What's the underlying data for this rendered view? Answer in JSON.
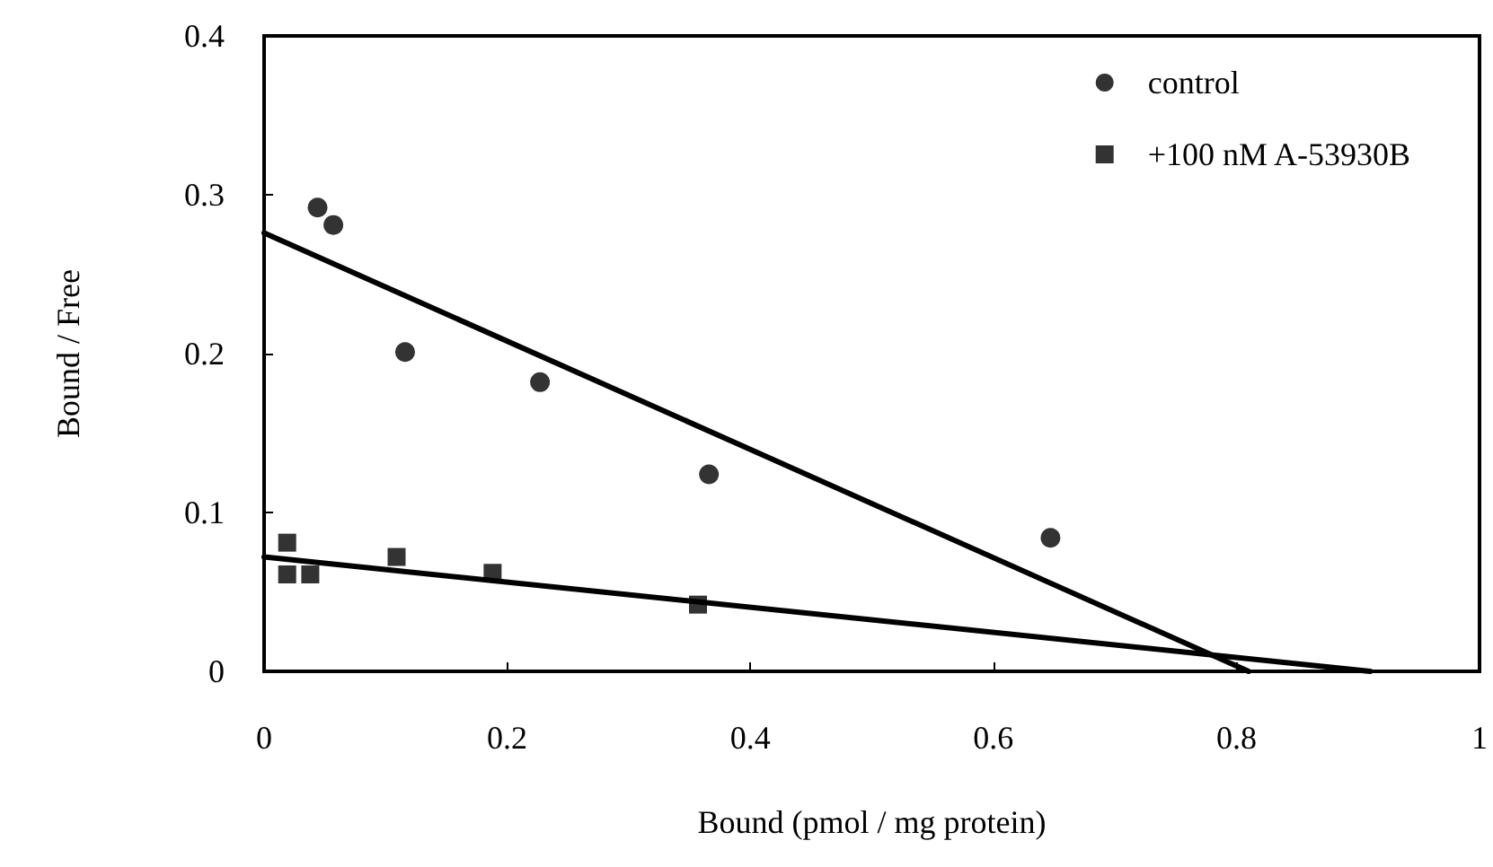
{
  "chart_data": {
    "type": "scatter",
    "xlabel": "Bound (pmol / mg protein)",
    "ylabel": "Bound / Free",
    "xlim": [
      0,
      1
    ],
    "ylim": [
      0,
      0.4
    ],
    "xticks": [
      0,
      0.2,
      0.4,
      0.6,
      0.8,
      1
    ],
    "yticks": [
      0,
      0.1,
      0.2,
      0.3,
      0.4
    ],
    "grid": false,
    "legend": "top right",
    "series": [
      {
        "name": "control",
        "color": "#000000",
        "marker": "circle",
        "x": [
          0.044,
          0.057,
          0.116,
          0.227,
          0.366,
          0.647
        ],
        "values": [
          0.292,
          0.281,
          0.201,
          0.182,
          0.124,
          0.084
        ]
      },
      {
        "name": "+100 nM A-53930B",
        "color": "#000000",
        "marker": "square",
        "x": [
          0.019,
          0.019,
          0.038,
          0.109,
          0.188,
          0.357
        ],
        "values": [
          0.081,
          0.061,
          0.061,
          0.072,
          0.062,
          0.042
        ]
      },
      {
        "type": "line",
        "color": "#000000",
        "marker": "none",
        "line_style": "solid",
        "x": [
          0,
          0.81
        ],
        "values": [
          0.276,
          0
        ]
      },
      {
        "type": "line",
        "color": "#000000",
        "marker": "none",
        "line_style": "solid",
        "x": [
          0,
          0.91
        ],
        "values": [
          0.072,
          0
        ]
      }
    ]
  }
}
